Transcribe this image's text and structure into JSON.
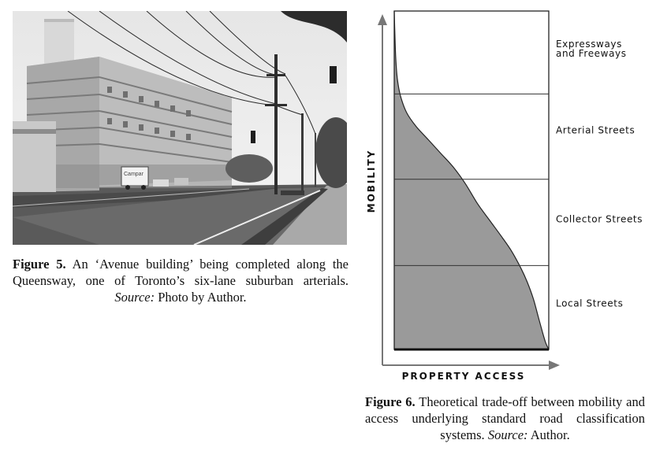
{
  "figure5": {
    "label": "Figure 5.",
    "text": " An ‘Avenue building’ being completed along the Queensway, one of Toronto’s six-lane suburban arterials. ",
    "source_label": "Source:",
    "source_text": " Photo by Author.",
    "photo": {
      "truck_text": "Campar"
    }
  },
  "figure6": {
    "label": "Figure 6.",
    "text": " Theoretical trade-off between mobility and access underlying standard road classification systems. ",
    "source_label": "Source:",
    "source_text": " Author."
  },
  "chart_data": {
    "type": "area",
    "title": "",
    "xlabel": "PROPERTY ACCESS",
    "ylabel": "MOBILITY",
    "xlim": [
      0,
      1
    ],
    "ylim": [
      0,
      1
    ],
    "grid": false,
    "bands": [
      {
        "label_lines": [
          "Expressways",
          "and Freeways"
        ],
        "y_from": 0.755,
        "y_to": 1.0
      },
      {
        "label_lines": [
          "Arterial Streets"
        ],
        "y_from": 0.503,
        "y_to": 0.755
      },
      {
        "label_lines": [
          "Collector Streets"
        ],
        "y_from": 0.248,
        "y_to": 0.503
      },
      {
        "label_lines": [
          "Local Streets"
        ],
        "y_from": 0.0,
        "y_to": 0.248
      }
    ],
    "series": [
      {
        "x": [
          0.0,
          0.005,
          0.01,
          0.02,
          0.04,
          0.08,
          0.14,
          0.22,
          0.3,
          0.38,
          0.46,
          0.54,
          0.62,
          0.7,
          0.76,
          0.82,
          0.86,
          0.9,
          0.93,
          0.96,
          0.98,
          1.0
        ],
        "y": [
          1.0,
          0.92,
          0.86,
          0.8,
          0.75,
          0.7,
          0.66,
          0.62,
          0.58,
          0.54,
          0.49,
          0.43,
          0.38,
          0.33,
          0.29,
          0.24,
          0.2,
          0.15,
          0.1,
          0.05,
          0.02,
          0.0
        ]
      }
    ],
    "colors": {
      "fill": "#9a9a9a",
      "line": "#222222",
      "background": "#ffffff"
    }
  }
}
